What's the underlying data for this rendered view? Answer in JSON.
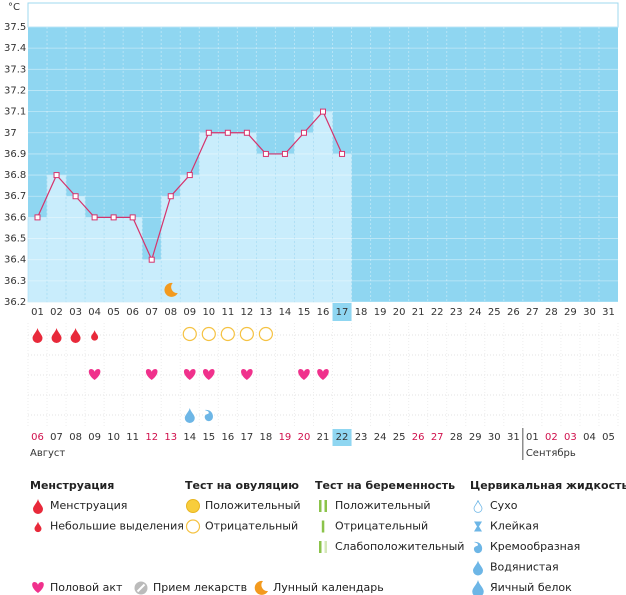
{
  "chart_data": {
    "type": "line",
    "y_label": "°C",
    "categories": [
      "01",
      "02",
      "03",
      "04",
      "05",
      "06",
      "07",
      "08",
      "09",
      "10",
      "11",
      "12",
      "13",
      "14",
      "15",
      "16",
      "17",
      "18",
      "19",
      "20",
      "21",
      "22",
      "23",
      "24",
      "25",
      "26",
      "27",
      "28",
      "29",
      "30",
      "31"
    ],
    "current": "17",
    "series": [
      {
        "name": "Температура",
        "color": "#d6336c",
        "values": [
          36.6,
          36.8,
          36.7,
          36.6,
          36.6,
          36.6,
          36.4,
          36.7,
          36.8,
          37.0,
          37.0,
          37.0,
          36.9,
          36.9,
          37.0,
          37.1,
          36.9,
          null,
          null,
          null,
          null,
          null,
          null,
          null,
          null,
          null,
          null,
          null,
          null,
          null,
          null
        ]
      }
    ],
    "ylim": [
      36.2,
      37.5
    ],
    "yticks": [
      36.2,
      36.3,
      36.4,
      36.5,
      36.6,
      36.7,
      36.8,
      36.9,
      {
        "value": 37.0,
        "label": "37"
      },
      37.1,
      37.2,
      37.3,
      37.4,
      37.5
    ],
    "grid": true,
    "rows": {
      "menstruation": [
        "full",
        "full",
        "full",
        "light",
        null,
        null,
        null,
        null,
        null,
        null,
        null,
        null,
        null,
        null,
        null,
        null,
        null,
        null,
        null,
        null,
        null,
        null,
        null,
        null,
        null,
        null,
        null,
        null,
        null,
        null,
        null
      ],
      "ovulation_test": [
        null,
        null,
        null,
        null,
        null,
        null,
        null,
        null,
        "negative",
        "negative",
        "negative",
        "negative",
        "negative",
        null,
        null,
        null,
        null,
        null,
        null,
        null,
        null,
        null,
        null,
        null,
        null,
        null,
        null,
        null,
        null,
        null,
        null
      ],
      "intercourse": [
        null,
        null,
        null,
        "heart",
        null,
        null,
        "heart",
        null,
        "heart",
        "heart",
        null,
        "heart",
        null,
        null,
        "heart",
        "heart",
        null,
        null,
        null,
        null,
        null,
        null,
        null,
        null,
        null,
        null,
        null,
        null,
        null,
        null,
        null
      ],
      "fluid": [
        null,
        null,
        null,
        null,
        null,
        null,
        null,
        null,
        "watery",
        "creamy",
        null,
        null,
        null,
        null,
        null,
        null,
        null,
        null,
        null,
        null,
        null,
        null,
        null,
        null,
        null,
        null,
        null,
        null,
        null,
        null,
        null
      ],
      "lunar": [
        null,
        null,
        null,
        null,
        null,
        null,
        null,
        "moon",
        null,
        null,
        null,
        null,
        null,
        null,
        null,
        null,
        null,
        null,
        null,
        null,
        null,
        null,
        null,
        null,
        null,
        null,
        null,
        null,
        null,
        null,
        null
      ]
    },
    "cycle_days": [
      {
        "label": "06",
        "weekend": true
      },
      {
        "label": "07"
      },
      {
        "label": "08"
      },
      {
        "label": "09"
      },
      {
        "label": "10"
      },
      {
        "label": "11"
      },
      {
        "label": "12",
        "weekend": true
      },
      {
        "label": "13",
        "weekend": true
      },
      {
        "label": "14"
      },
      {
        "label": "15"
      },
      {
        "label": "16"
      },
      {
        "label": "17"
      },
      {
        "label": "18"
      },
      {
        "label": "19",
        "weekend": true
      },
      {
        "label": "20",
        "weekend": true
      },
      {
        "label": "21"
      },
      {
        "label": "22",
        "today": true
      },
      {
        "label": "23"
      },
      {
        "label": "24"
      },
      {
        "label": "25"
      },
      {
        "label": "26",
        "weekend": true
      },
      {
        "label": "27",
        "weekend": true
      },
      {
        "label": "28"
      },
      {
        "label": "29"
      },
      {
        "label": "30"
      },
      {
        "label": "31"
      },
      {
        "label": "01"
      },
      {
        "label": "02",
        "weekend": true
      },
      {
        "label": "03",
        "weekend": true
      },
      {
        "label": "04"
      },
      {
        "label": "05"
      }
    ],
    "months": [
      "Август",
      "Сентябрь"
    ]
  },
  "legend": {
    "groups": [
      {
        "title": "Менструация",
        "items": [
          "Менструация",
          "Небольшие выделения"
        ]
      },
      {
        "title": "Тест на овуляцию",
        "items": [
          "Положительный",
          "Отрицательный"
        ]
      },
      {
        "title": "Тест на беременность",
        "items": [
          "Положительный",
          "Отрицательный",
          "Слабоположительный"
        ]
      },
      {
        "title": "Цервикальная жидкость",
        "items": [
          "Сухо",
          "Клейкая",
          "Кремообразная",
          "Водянистая",
          "Яичный белок"
        ]
      }
    ],
    "extras": [
      "Половой акт",
      "Прием лекарств",
      "Лунный календарь"
    ]
  }
}
